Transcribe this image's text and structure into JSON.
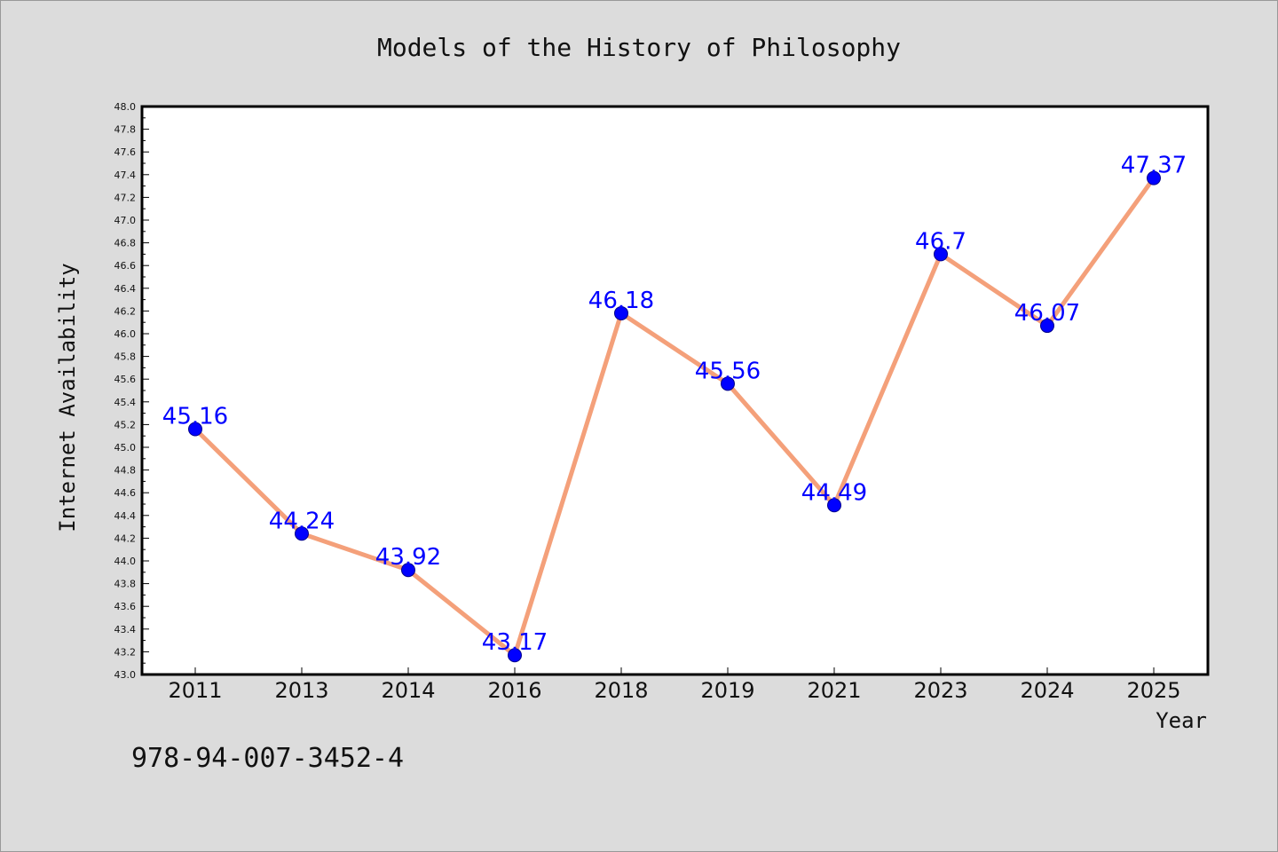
{
  "chart_data": {
    "type": "line",
    "title": "Models of the History of Philosophy",
    "xlabel": "Year",
    "ylabel": "Internet Availability",
    "categories": [
      "2011",
      "2013",
      "2014",
      "2016",
      "2018",
      "2019",
      "2021",
      "2023",
      "2024",
      "2025"
    ],
    "series": [
      {
        "values": [
          45.16,
          44.24,
          43.92,
          43.17,
          46.18,
          45.56,
          44.49,
          46.7,
          46.07,
          47.37
        ],
        "data_labels": [
          "45.16",
          "44.24",
          "43.92",
          "43.17",
          "46.18",
          "45.56",
          "44.49",
          "46.7",
          "46.07",
          "47.37"
        ],
        "line_color": "#f4a07a",
        "marker_color": "#0000ff"
      }
    ],
    "ylim": [
      43.0,
      48.0
    ],
    "ytick_labels": [
      "43.0",
      "43.2",
      "43.4",
      "43.6",
      "43.8",
      "44.0",
      "44.2",
      "44.4",
      "44.6",
      "44.8",
      "45.0",
      "45.2",
      "45.4",
      "45.6",
      "45.8",
      "46.0",
      "46.2",
      "46.4",
      "46.6",
      "46.8",
      "47.0",
      "47.2",
      "47.4",
      "47.6",
      "47.8",
      "48.0"
    ],
    "grid": false,
    "legend": "none"
  },
  "annotation": {
    "isbn": "978-94-007-3452-4"
  },
  "colors": {
    "background": "#dcdcdc",
    "plot_background": "#ffffff",
    "line": "#f4a07a",
    "marker": "#0000ff",
    "data_label": "#0000ff"
  }
}
